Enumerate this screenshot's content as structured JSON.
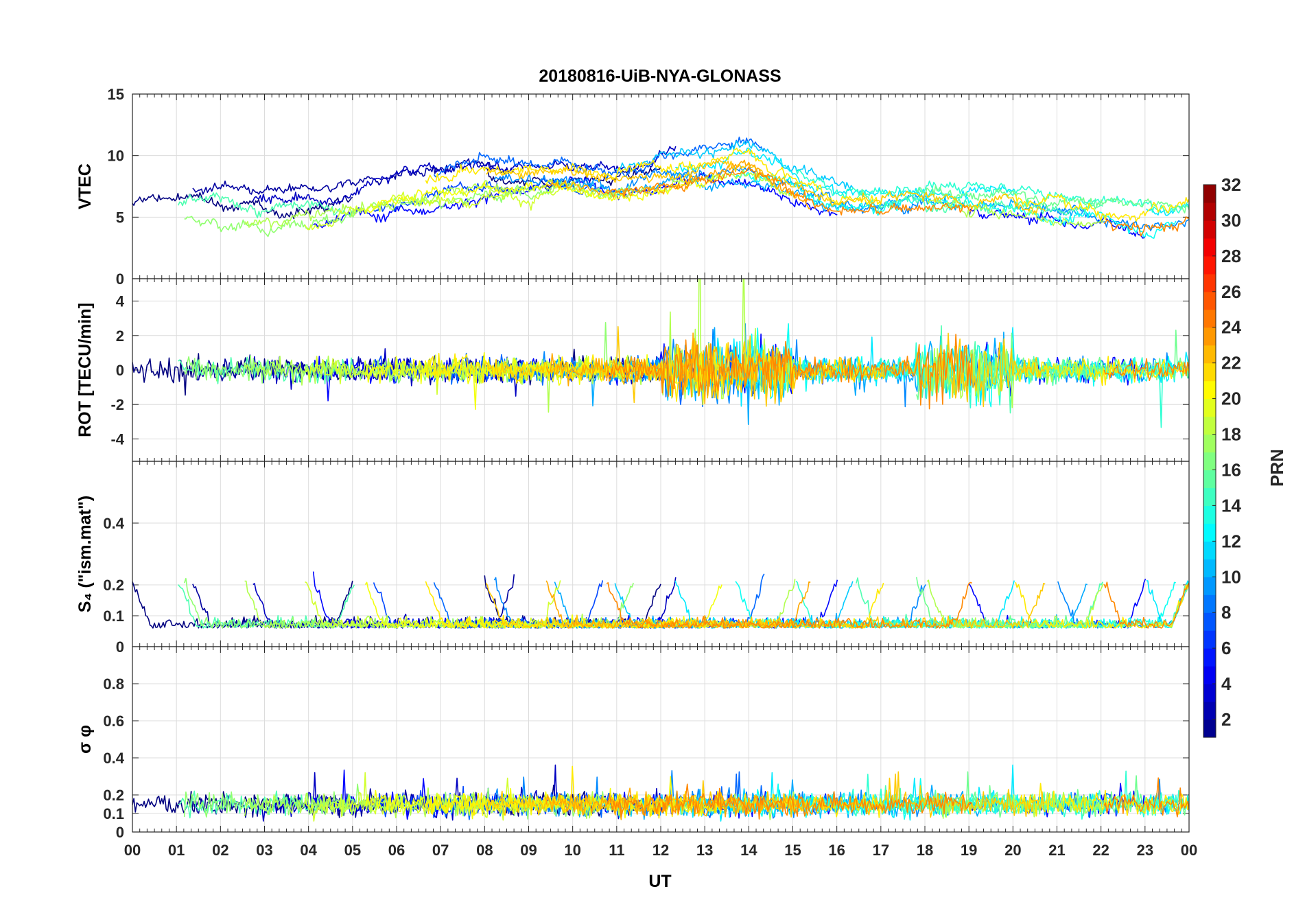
{
  "chart_data": {
    "type": "line",
    "title": "20180816-UiB-NYA-GLONASS",
    "xlabel": "UT",
    "x_ticks": [
      "00",
      "01",
      "02",
      "03",
      "04",
      "05",
      "06",
      "07",
      "08",
      "09",
      "10",
      "11",
      "12",
      "13",
      "14",
      "15",
      "16",
      "17",
      "18",
      "19",
      "20",
      "21",
      "22",
      "23",
      "00"
    ],
    "xlim_hours": [
      0,
      24
    ],
    "grid": true,
    "panels": [
      {
        "id": "vtec",
        "ylabel": "VTEC",
        "ylim": [
          0,
          15
        ],
        "yticks": [
          "0",
          "5",
          "10",
          "15"
        ],
        "trend_x": [
          0,
          1,
          2,
          3,
          4,
          5,
          6,
          7,
          8,
          9,
          10,
          11,
          12,
          13,
          14,
          15,
          16,
          17,
          18,
          19,
          20,
          21,
          22,
          23,
          24
        ],
        "trend_y": [
          5.5,
          6,
          5.8,
          5,
          5.5,
          6,
          7,
          7.5,
          8.5,
          8,
          8.5,
          8,
          8.5,
          9,
          9.5,
          8,
          6.5,
          6.3,
          6.8,
          6.5,
          6.2,
          6,
          5.5,
          5,
          5.5
        ]
      },
      {
        "id": "rot",
        "ylabel": "ROT [TECU/min]",
        "ylim": [
          -5.3,
          5.3
        ],
        "yticks": [
          "-4",
          "-2",
          "0",
          "2",
          "4"
        ],
        "trend_x": [
          0,
          24
        ],
        "trend_y": [
          0,
          0
        ]
      },
      {
        "id": "s4",
        "ylabel": "S₄ (\"ism.mat\")",
        "ylim": [
          0,
          0.6
        ],
        "yticks": [
          "0",
          "0.1",
          "0.2",
          "0.4"
        ],
        "trend_x": [
          0,
          24
        ],
        "trend_y": [
          0.07,
          0.07
        ]
      },
      {
        "id": "sigma",
        "ylabel": "σ φ",
        "ylim": [
          0,
          1
        ],
        "yticks": [
          "0",
          "0.1",
          "0.2",
          "0.4",
          "0.6",
          "0.8"
        ],
        "trend_x": [
          0,
          24
        ],
        "trend_y": [
          0.15,
          0.15
        ]
      }
    ],
    "series": [
      {
        "prn": 1
      },
      {
        "prn": 2
      },
      {
        "prn": 3
      },
      {
        "prn": 5
      },
      {
        "prn": 7
      },
      {
        "prn": 8
      },
      {
        "prn": 9
      },
      {
        "prn": 10
      },
      {
        "prn": 11
      },
      {
        "prn": 12
      },
      {
        "prn": 13
      },
      {
        "prn": 14
      },
      {
        "prn": 15
      },
      {
        "prn": 16
      },
      {
        "prn": 17
      },
      {
        "prn": 18
      },
      {
        "prn": 19
      },
      {
        "prn": 20
      },
      {
        "prn": 21
      },
      {
        "prn": 22
      },
      {
        "prn": 23
      },
      {
        "prn": 24
      }
    ],
    "colorbar": {
      "label": "PRN",
      "range": [
        1,
        32
      ],
      "ticks": [
        "2",
        "4",
        "6",
        "8",
        "10",
        "12",
        "14",
        "16",
        "18",
        "20",
        "22",
        "24",
        "26",
        "28",
        "30",
        "32"
      ],
      "colormap": "jet"
    }
  }
}
